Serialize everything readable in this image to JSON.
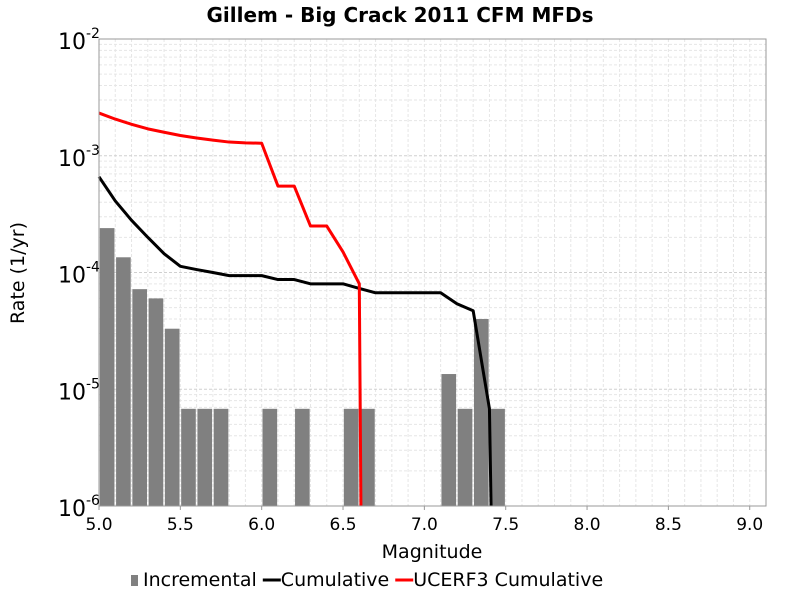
{
  "chart_data": {
    "type": "bar",
    "title": "Gillem - Big Crack 2011 CFM MFDs",
    "xlabel": "Magnitude",
    "ylabel": "Rate (1/yr)",
    "xlim": [
      5.0,
      9.1
    ],
    "ylim": [
      1e-06,
      0.01
    ],
    "yscale": "log",
    "grid": true,
    "legend_position": "bottom",
    "x_ticks": [
      "5.0",
      "5.5",
      "6.0",
      "6.5",
      "7.0",
      "7.5",
      "8.0",
      "8.5",
      "9.0"
    ],
    "y_ticks": [
      {
        "base": "10",
        "exp": "-6"
      },
      {
        "base": "10",
        "exp": "-5"
      },
      {
        "base": "10",
        "exp": "-4"
      },
      {
        "base": "10",
        "exp": "-3"
      },
      {
        "base": "10",
        "exp": "-2"
      }
    ],
    "bar_width": 0.09,
    "series": [
      {
        "name": "Incremental",
        "type": "bar",
        "color": "#808080",
        "x": [
          5.05,
          5.15,
          5.25,
          5.35,
          5.45,
          5.55,
          5.65,
          5.75,
          6.05,
          6.25,
          6.55,
          6.65,
          7.15,
          7.25,
          7.35,
          7.45
        ],
        "y": [
          0.00024,
          0.000135,
          7.2e-05,
          6e-05,
          3.3e-05,
          6.8e-06,
          6.8e-06,
          6.8e-06,
          6.8e-06,
          6.8e-06,
          6.8e-06,
          6.8e-06,
          1.35e-05,
          6.8e-06,
          4e-05,
          6.8e-06
        ]
      },
      {
        "name": "Cumulative",
        "type": "line",
        "color": "#000000",
        "x": [
          5.0,
          5.1,
          5.2,
          5.3,
          5.4,
          5.5,
          5.6,
          5.7,
          5.8,
          5.9,
          6.0,
          6.1,
          6.2,
          6.3,
          6.4,
          6.5,
          6.6,
          6.7,
          6.8,
          6.9,
          7.0,
          7.1,
          7.2,
          7.3,
          7.4,
          7.41
        ],
        "y": [
          0.00066,
          0.00041,
          0.00028,
          0.0002,
          0.000145,
          0.000113,
          0.000106,
          0.0001,
          9.4e-05,
          9.4e-05,
          9.4e-05,
          8.7e-05,
          8.7e-05,
          8e-05,
          8e-05,
          8e-05,
          7.3e-05,
          6.7e-05,
          6.7e-05,
          6.7e-05,
          6.7e-05,
          6.7e-05,
          5.4e-05,
          4.7e-05,
          6.8e-06,
          1e-06
        ]
      },
      {
        "name": "UCERF3 Cumulative",
        "type": "line",
        "color": "#ff0000",
        "x": [
          5.0,
          5.1,
          5.2,
          5.3,
          5.4,
          5.5,
          5.6,
          5.7,
          5.8,
          5.9,
          6.0,
          6.1,
          6.2,
          6.3,
          6.4,
          6.5,
          6.6,
          6.61
        ],
        "y": [
          0.00232,
          0.00206,
          0.00186,
          0.0017,
          0.00159,
          0.00149,
          0.00142,
          0.00136,
          0.00131,
          0.00129,
          0.00128,
          0.00055,
          0.00055,
          0.00025,
          0.00025,
          0.00015,
          8e-05,
          1e-06
        ]
      }
    ]
  }
}
